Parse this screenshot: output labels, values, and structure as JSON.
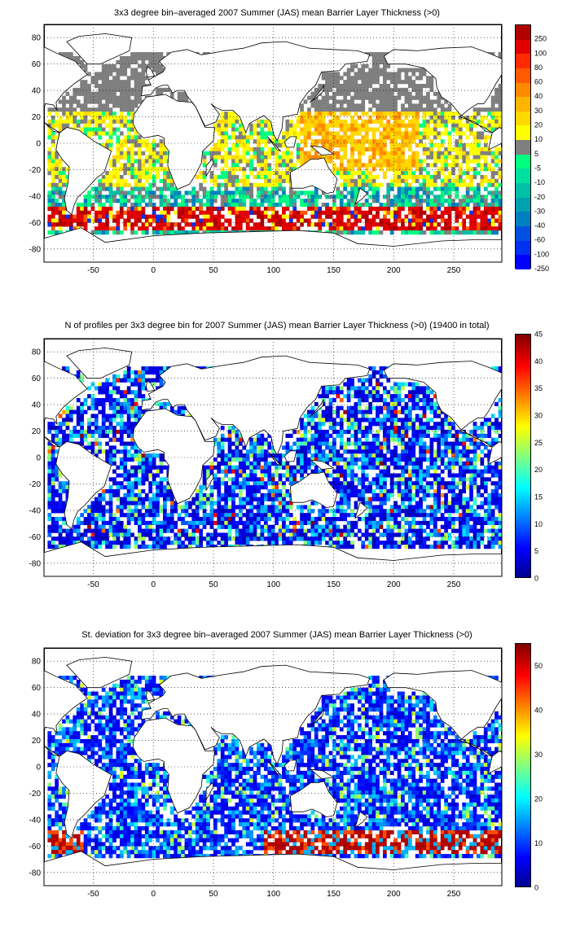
{
  "panels": [
    {
      "id": "mean",
      "title": "3x3 degree bin–averaged 2007 Summer (JAS) mean Barrier Layer Thickness (>0)",
      "colorbar_type": "discrete",
      "colorbar_labels": [
        "250",
        "100",
        "80",
        "60",
        "40",
        "30",
        "20",
        "10",
        "5",
        "-5",
        "-10",
        "-20",
        "-30",
        "-40",
        "-60",
        "-100",
        "-250"
      ],
      "colorbar_colors": [
        "#b00000",
        "#e00000",
        "#ff2a00",
        "#ff5a00",
        "#ff8a00",
        "#ffb400",
        "#ffd800",
        "#ffff00",
        "#7f7f7f",
        "#00ff80",
        "#00e0a0",
        "#00c0a8",
        "#00a0b0",
        "#0080c0",
        "#0050e0",
        "#0030f0",
        "#0000ff"
      ]
    },
    {
      "id": "count",
      "title": "N of profiles per 3x3 degree bin for 2007 Summer (JAS) mean Barrier Layer Thickness (>0) (19400 in total)",
      "colorbar_type": "continuous",
      "colorbar_labels": [
        "45",
        "40",
        "35",
        "30",
        "25",
        "20",
        "15",
        "10",
        "5",
        "0"
      ]
    },
    {
      "id": "stdev",
      "title": "St. deviation for 3x3 degree bin–averaged 2007 Summer (JAS) mean Barrier Layer Thickness (>0)",
      "colorbar_type": "continuous",
      "colorbar_labels": [
        "50",
        "40",
        "30",
        "20",
        "10",
        "0"
      ]
    }
  ],
  "x_ticks": [
    "-50",
    "0",
    "50",
    "100",
    "150",
    "200",
    "250"
  ],
  "y_ticks": [
    "80",
    "60",
    "40",
    "20",
    "0",
    "-20",
    "-40",
    "-60",
    "-80"
  ]
}
